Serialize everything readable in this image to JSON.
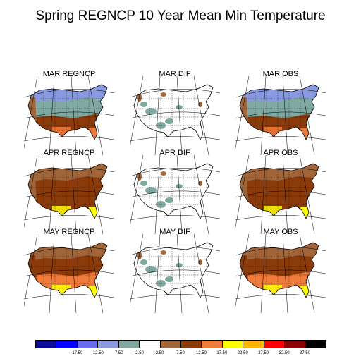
{
  "title": "Spring REGNCP 10 Year Mean Min Temperature",
  "panels": [
    {
      "label": "MAR REGNCP",
      "type": "model",
      "month": "MAR"
    },
    {
      "label": "MAR DIF",
      "type": "diff",
      "month": "MAR"
    },
    {
      "label": "MAR OBS",
      "type": "model",
      "month": "MAR"
    },
    {
      "label": "APR REGNCP",
      "type": "model",
      "month": "APR"
    },
    {
      "label": "APR DIF",
      "type": "diff",
      "month": "APR"
    },
    {
      "label": "APR OBS",
      "type": "model",
      "month": "APR"
    },
    {
      "label": "MAY REGNCP",
      "type": "model",
      "month": "MAY"
    },
    {
      "label": "MAY DIF",
      "type": "diff",
      "month": "MAY"
    },
    {
      "label": "MAY OBS",
      "type": "model",
      "month": "MAY"
    }
  ],
  "colorbar": {
    "colors": [
      "#0a0a9a",
      "#0000ff",
      "#6a6af0",
      "#8a9ae0",
      "#7fa8a0",
      "#ffffff",
      "#a0663a",
      "#8b3a0a",
      "#f07a3a",
      "#ffff00",
      "#ffb400",
      "#ff0000",
      "#8b0000",
      "#000000"
    ],
    "tick_labels": [
      "-17.50",
      "-12.50",
      "-7.50",
      "-2.50",
      "2.50",
      "7.50",
      "12.50",
      "17.50",
      "22.50",
      "27.50",
      "32.50",
      "37.50"
    ]
  },
  "month_colors": {
    "MAR": {
      "north": "#8a9ae0",
      "mid": "#7fa8a0",
      "south": "#8b3a0a",
      "coast": "#a0663a",
      "tip": "#f07a3a"
    },
    "APR": {
      "north": "#a0663a",
      "mid": "#8b3a0a",
      "south": "#8b3a0a",
      "coast": "#a0663a",
      "tip": "#ffff00"
    },
    "MAY": {
      "north": "#a0663a",
      "mid": "#8b3a0a",
      "south": "#f07a3a",
      "coast": "#8b3a0a",
      "tip": "#ffff00"
    }
  }
}
